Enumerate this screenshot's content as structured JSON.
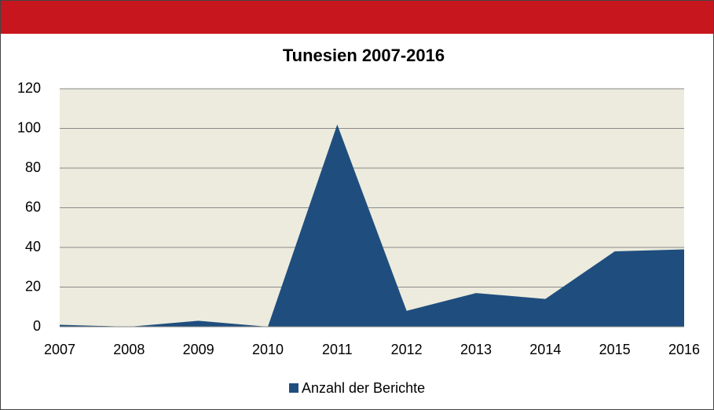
{
  "chart_data": {
    "type": "area",
    "title": "Tunesien 2007-2016",
    "categories": [
      "2007",
      "2008",
      "2009",
      "2010",
      "2011",
      "2012",
      "2013",
      "2014",
      "2015",
      "2016"
    ],
    "series": [
      {
        "name": "Anzahl der Berichte",
        "color": "#1f4e7e",
        "values": [
          1,
          0,
          3,
          0,
          102,
          8,
          17,
          14,
          38,
          39
        ]
      }
    ],
    "ylim": [
      0,
      120
    ],
    "yticks": [
      0,
      20,
      40,
      60,
      80,
      100,
      120
    ],
    "grid": true,
    "legend": "bottom"
  }
}
